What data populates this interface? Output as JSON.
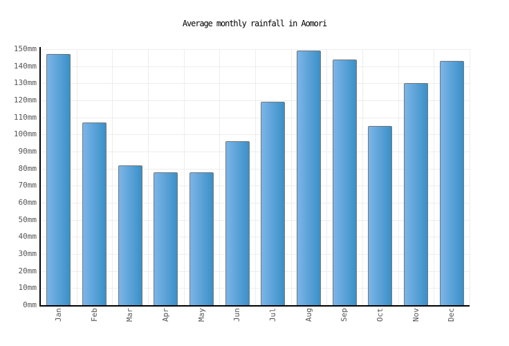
{
  "chart_data": {
    "type": "bar",
    "title": "Average monthly rainfall in Aomori",
    "categories": [
      "Jan",
      "Feb",
      "Mar",
      "Apr",
      "May",
      "Jun",
      "Jul",
      "Aug",
      "Sep",
      "Oct",
      "Nov",
      "Dec"
    ],
    "values": [
      147,
      107,
      82,
      78,
      78,
      96,
      119,
      149,
      144,
      105,
      130,
      143
    ],
    "unit": "mm",
    "xlabel": "",
    "ylabel": "",
    "ylim": [
      0,
      150
    ],
    "ytick_step": 10,
    "ytick_labels": [
      "0mm",
      "10mm",
      "20mm",
      "30mm",
      "40mm",
      "50mm",
      "60mm",
      "70mm",
      "80mm",
      "90mm",
      "100mm",
      "110mm",
      "120mm",
      "130mm",
      "140mm",
      "150mm"
    ],
    "grid": true,
    "legend": "none",
    "colors": {
      "bar_gradient_left": "#7cb5e8",
      "bar_gradient_right": "#3a90c8",
      "bar_border": "#757575",
      "gridline": "#ededed",
      "axis": "#000000",
      "tick_label": "#555555",
      "title": "#000000",
      "background": "#ffffff"
    }
  }
}
